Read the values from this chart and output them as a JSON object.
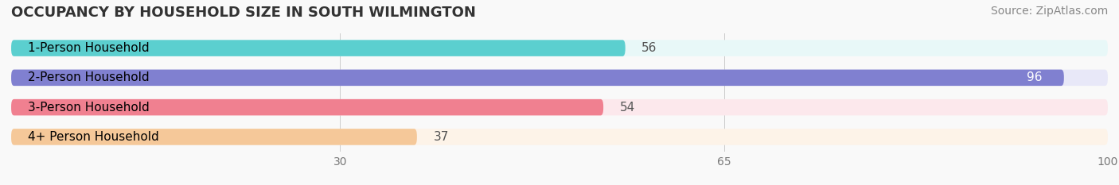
{
  "title": "OCCUPANCY BY HOUSEHOLD SIZE IN SOUTH WILMINGTON",
  "source": "Source: ZipAtlas.com",
  "categories": [
    "1-Person Household",
    "2-Person Household",
    "3-Person Household",
    "4+ Person Household"
  ],
  "values": [
    56,
    96,
    54,
    37
  ],
  "bar_colors": [
    "#5bcfcf",
    "#8080d0",
    "#f08090",
    "#f5c899"
  ],
  "bg_colors": [
    "#e8f8f8",
    "#e8e8f8",
    "#fce8ec",
    "#fdf3e8"
  ],
  "label_colors": [
    "#000000",
    "#ffffff",
    "#000000",
    "#000000"
  ],
  "xlim": [
    0,
    100
  ],
  "xticks": [
    30,
    65,
    100
  ],
  "title_fontsize": 13,
  "source_fontsize": 10,
  "bar_label_fontsize": 11,
  "cat_label_fontsize": 11,
  "figsize": [
    14.06,
    2.33
  ],
  "dpi": 100
}
